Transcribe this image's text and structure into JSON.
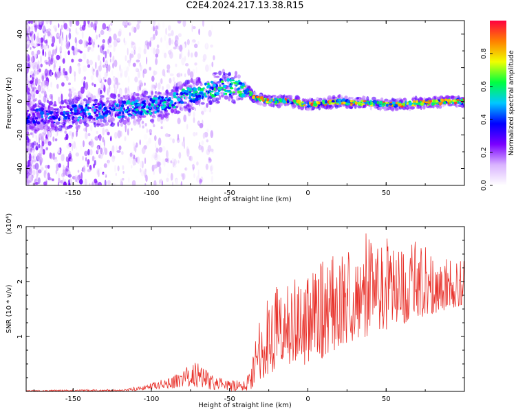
{
  "title": "C2E4.2024.217.13.38.R15",
  "chart_data": [
    {
      "type": "heatmap",
      "xlabel": "Height of straight line (km)",
      "ylabel": "Frequency (Hz)",
      "xlim": [
        -180,
        100
      ],
      "ylim": [
        -50,
        48
      ],
      "xticks": [
        -150,
        -100,
        -50,
        0,
        50
      ],
      "yticks": [
        -40,
        -20,
        0,
        20,
        40
      ],
      "colorbar": {
        "label": "Normalized spectral amplitude",
        "range": [
          0,
          1
        ],
        "ticks": [
          "0.0",
          "0.2",
          "0.4",
          "0.6",
          "0.8"
        ],
        "colors": [
          "#ffffff",
          "#d9b3ff",
          "#7a00ff",
          "#0000ff",
          "#00c8ff",
          "#00ff40",
          "#f0ff00",
          "#ff8000",
          "#ff0040"
        ]
      },
      "ridge": {
        "x": [
          -180,
          -150,
          -120,
          -100,
          -80,
          -65,
          -55,
          -45,
          -38,
          -34,
          -30,
          -20,
          -10,
          0,
          10,
          20,
          30,
          40,
          50,
          60,
          70,
          80,
          90,
          100
        ],
        "freq": [
          -10,
          -7,
          -5,
          -3,
          2,
          6,
          9,
          8,
          6,
          2,
          1,
          0,
          0,
          -2,
          -1,
          0,
          -1,
          -1,
          -2,
          -2,
          -1,
          -1,
          0,
          0
        ]
      }
    },
    {
      "type": "line",
      "xlabel": "Height of straight line (km)",
      "ylabel": "SNR (10 * v/v)",
      "y_multiplier": "(x10⁴)",
      "xlim": [
        -180,
        100
      ],
      "ylim": [
        0,
        3
      ],
      "xticks": [
        -150,
        -100,
        -50,
        0,
        50
      ],
      "yticks": [
        1,
        2,
        3
      ],
      "series": [
        {
          "color": "#e8312a",
          "envelope": {
            "x": [
              -180,
              -150,
              -120,
              -105,
              -95,
              -85,
              -75,
              -68,
              -62,
              -50,
              -40,
              -36,
              -33,
              -30,
              -25,
              -20,
              -10,
              0,
              10,
              20,
              30,
              40,
              50,
              60,
              70,
              80,
              90,
              100
            ],
            "low": [
              0.0,
              0.0,
              0.0,
              0.02,
              0.04,
              0.06,
              0.08,
              0.06,
              0.02,
              0.0,
              0.0,
              0.05,
              0.2,
              0.2,
              0.3,
              0.35,
              0.4,
              0.5,
              0.6,
              0.8,
              0.9,
              1.0,
              1.1,
              1.2,
              1.3,
              1.4,
              1.5,
              1.55
            ],
            "high": [
              0.02,
              0.03,
              0.04,
              0.1,
              0.2,
              0.3,
              0.5,
              0.6,
              0.3,
              0.2,
              0.2,
              0.5,
              1.1,
              1.4,
              1.8,
              2.0,
              2.1,
              2.2,
              2.4,
              2.5,
              2.7,
              3.0,
              2.8,
              2.6,
              2.8,
              2.5,
              2.4,
              2.4
            ]
          }
        }
      ]
    }
  ]
}
